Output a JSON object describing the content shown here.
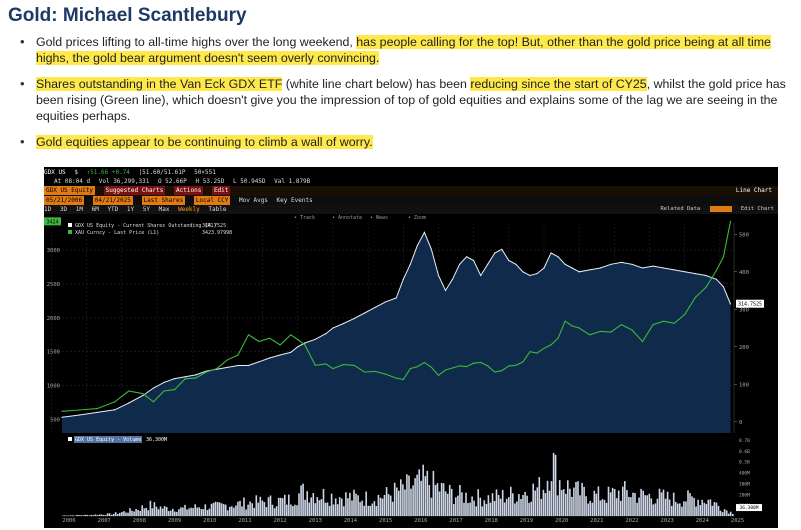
{
  "header": {
    "title": "Gold: Michael Scantlebury"
  },
  "bullets": [
    {
      "parts": [
        {
          "text": "Gold prices lifting to all-time highs over the long weekend, ",
          "hl": false
        },
        {
          "text": "has people calling for the top! But, other than the gold price being at all time highs, the gold bear argument doesn't seem overly convincing.",
          "hl": true
        }
      ]
    },
    {
      "parts": [
        {
          "text": "Shares outstanding in the Van Eck GDX ETF",
          "hl": true
        },
        {
          "text": " (white line chart below) has been ",
          "hl": false
        },
        {
          "text": "reducing since the start of CY25",
          "hl": true
        },
        {
          "text": ", whilst the gold price has been rising (Green line), which doesn't give you the impression of top of gold equities and explains some of the lag we are seeing in the equities perhaps.",
          "hl": false
        }
      ]
    },
    {
      "parts": [
        {
          "text": "Gold equities appear to be continuing to climb a wall of worry.",
          "hl": true
        }
      ]
    }
  ],
  "terminal": {
    "row1": [
      "GDX US",
      "$",
      "↑51.66 +0.74",
      "|51.60/51.61P",
      "50×551"
    ],
    "row2": [
      "At 08:04 d",
      "Vol 36,299,331",
      "O 52.66P",
      "H 53.25D",
      "L 50.945D",
      "Val 1.879B"
    ],
    "row3": [
      "GDX US Equity",
      "Suggested Charts",
      "Actions",
      "Edit"
    ],
    "row3_right": "Line Chart",
    "row4": [
      "05/21/2006",
      "04/21/2025",
      "Last Shares",
      "Local CCY",
      "Mov Avgs",
      "Key Events"
    ],
    "row5": [
      "1D",
      "3D",
      "1M",
      "6M",
      "YTD",
      "1Y",
      "5Y",
      "Max",
      "Weekly",
      "Table"
    ],
    "row5_right": [
      "Related Data",
      "Edit Chart"
    ],
    "ticks_top": [
      "Track",
      "Annotate",
      "News",
      "Zoom"
    ],
    "volume_legend": "GDX US Equity - Volume",
    "volume_value": "36.300M",
    "volume_ticks_text": [
      "0.7B",
      "0.6B",
      "0.5B",
      "400M",
      "300M",
      "200M",
      "100M"
    ]
  },
  "chart_data": {
    "type": "line",
    "title": "",
    "legend": [
      {
        "label": "GDX US Equity - Current Shares Outstanding (R1)",
        "value": "314.7525",
        "color": "#ffffff"
      },
      {
        "label": "XAU Curncy - Last Price (L1)",
        "value": "3423.97998",
        "color": "#3cb93c"
      }
    ],
    "left_axis": {
      "ticks": [
        500,
        1000,
        1500,
        2000,
        2500,
        3000
      ],
      "range": [
        300,
        3400
      ],
      "label_top": "3424"
    },
    "right_axis": {
      "ticks": [
        0,
        100,
        200,
        300,
        400,
        500
      ],
      "range": [
        -30,
        530
      ],
      "current_label": "314.7525"
    },
    "x_ticks": [
      "2006",
      "2007",
      "2008",
      "2009",
      "2010",
      "2011",
      "2012",
      "2013",
      "2014",
      "2015",
      "2016",
      "2017",
      "2018",
      "2019",
      "2020",
      "2021",
      "2022",
      "2023",
      "2024",
      "2025"
    ],
    "x_range": [
      2006.3,
      2025.4
    ],
    "series": [
      {
        "name": "GDX US Equity - Current Shares Outstanding (R1)",
        "axis": "right",
        "x": [
          2006.3,
          2006.8,
          2007.3,
          2007.8,
          2008.2,
          2008.6,
          2008.9,
          2009.2,
          2009.5,
          2009.8,
          2010.1,
          2010.4,
          2010.7,
          2011.0,
          2011.3,
          2011.6,
          2011.9,
          2012.2,
          2012.5,
          2012.8,
          2013.0,
          2013.2,
          2013.5,
          2013.8,
          2014.0,
          2014.3,
          2014.6,
          2014.9,
          2015.2,
          2015.5,
          2015.8,
          2016.0,
          2016.2,
          2016.4,
          2016.6,
          2016.8,
          2017.0,
          2017.2,
          2017.4,
          2017.6,
          2017.8,
          2018.0,
          2018.2,
          2018.4,
          2018.6,
          2018.8,
          2019.0,
          2019.2,
          2019.4,
          2019.6,
          2019.8,
          2020.0,
          2020.2,
          2020.4,
          2020.6,
          2020.8,
          2021.0,
          2021.3,
          2021.6,
          2021.9,
          2022.2,
          2022.5,
          2022.8,
          2023.1,
          2023.4,
          2023.7,
          2024.0,
          2024.3,
          2024.6,
          2024.9,
          2025.1,
          2025.3
        ],
        "y": [
          12,
          18,
          25,
          32,
          50,
          70,
          90,
          105,
          115,
          120,
          125,
          135,
          140,
          145,
          150,
          150,
          160,
          170,
          178,
          185,
          200,
          210,
          220,
          235,
          250,
          262,
          275,
          290,
          305,
          320,
          330,
          380,
          420,
          470,
          505,
          460,
          390,
          350,
          380,
          420,
          440,
          430,
          390,
          420,
          450,
          460,
          430,
          420,
          400,
          390,
          395,
          410,
          450,
          440,
          420,
          410,
          400,
          405,
          410,
          420,
          425,
          420,
          410,
          415,
          410,
          405,
          400,
          395,
          390,
          380,
          360,
          314
        ]
      },
      {
        "name": "XAU Curncy - Last Price (L1)",
        "axis": "left",
        "x": [
          2006.3,
          2006.8,
          2007.3,
          2007.8,
          2008.2,
          2008.6,
          2008.9,
          2009.2,
          2009.5,
          2009.8,
          2010.1,
          2010.4,
          2010.7,
          2011.0,
          2011.3,
          2011.6,
          2011.9,
          2012.2,
          2012.5,
          2012.8,
          2013.0,
          2013.2,
          2013.5,
          2013.8,
          2014.0,
          2014.3,
          2014.6,
          2014.9,
          2015.2,
          2015.5,
          2015.8,
          2016.0,
          2016.2,
          2016.4,
          2016.6,
          2016.8,
          2017.0,
          2017.2,
          2017.4,
          2017.6,
          2017.8,
          2018.0,
          2018.2,
          2018.4,
          2018.6,
          2018.8,
          2019.0,
          2019.2,
          2019.4,
          2019.6,
          2019.8,
          2020.0,
          2020.2,
          2020.4,
          2020.6,
          2020.8,
          2021.0,
          2021.3,
          2021.6,
          2021.9,
          2022.2,
          2022.5,
          2022.8,
          2023.1,
          2023.4,
          2023.7,
          2024.0,
          2024.3,
          2024.6,
          2024.9,
          2025.1,
          2025.3
        ],
        "y": [
          620,
          640,
          660,
          760,
          920,
          880,
          760,
          920,
          940,
          1100,
          1110,
          1200,
          1250,
          1380,
          1450,
          1750,
          1650,
          1700,
          1600,
          1750,
          1680,
          1600,
          1300,
          1320,
          1250,
          1310,
          1300,
          1200,
          1210,
          1170,
          1110,
          1090,
          1250,
          1280,
          1340,
          1270,
          1150,
          1230,
          1260,
          1290,
          1280,
          1330,
          1340,
          1290,
          1200,
          1220,
          1290,
          1300,
          1350,
          1500,
          1480,
          1550,
          1600,
          1700,
          1950,
          1880,
          1850,
          1750,
          1800,
          1790,
          1900,
          1820,
          1650,
          1900,
          1950,
          1920,
          2050,
          2300,
          2450,
          2700,
          2900,
          3424
        ]
      },
      {
        "name": "GDX US Equity - Volume",
        "axis": "volume",
        "x": [
          2006.3,
          2007.0,
          2007.7,
          2008.3,
          2008.8,
          2009.2,
          2009.7,
          2010.2,
          2010.7,
          2011.2,
          2011.7,
          2012.2,
          2012.7,
          2013.2,
          2013.6,
          2014.0,
          2014.5,
          2015.0,
          2015.5,
          2016.0,
          2016.3,
          2016.6,
          2016.9,
          2017.3,
          2017.8,
          2018.3,
          2018.8,
          2019.3,
          2019.7,
          2020.0,
          2020.2,
          2020.4,
          2020.8,
          2021.2,
          2021.7,
          2022.2,
          2022.7,
          2023.2,
          2023.7,
          2024.2,
          2024.7,
          2025.0,
          2025.3
        ],
        "y": [
          5,
          10,
          20,
          60,
          110,
          80,
          75,
          95,
          100,
          120,
          140,
          150,
          160,
          260,
          220,
          200,
          190,
          180,
          210,
          280,
          320,
          360,
          300,
          230,
          200,
          180,
          200,
          230,
          270,
          300,
          580,
          360,
          260,
          220,
          200,
          250,
          210,
          200,
          170,
          180,
          160,
          90,
          36.3
        ]
      }
    ]
  }
}
